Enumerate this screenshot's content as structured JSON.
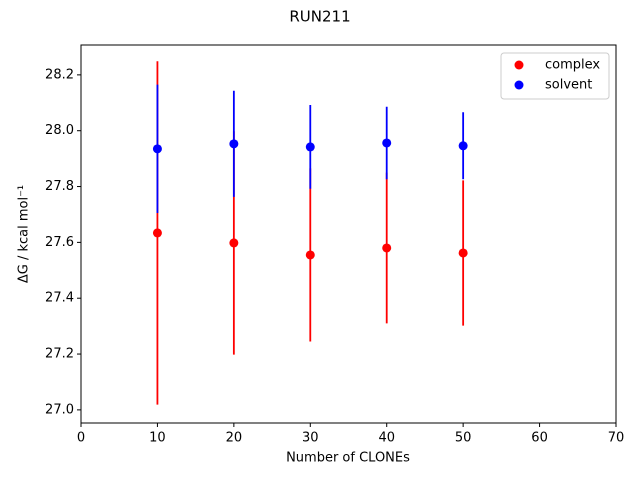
{
  "chart_data": {
    "type": "errorbar_scatter",
    "title": "RUN211",
    "x_label": "Number of CLONEs",
    "y_label": "ΔG / kcal mol⁻¹",
    "x": [
      10,
      20,
      30,
      40,
      50
    ],
    "series": [
      {
        "name": "complex",
        "color": "#ff0000",
        "values": [
          27.634,
          27.598,
          27.555,
          27.58,
          27.562
        ],
        "errors": [
          0.615,
          0.4,
          0.31,
          0.27,
          0.26
        ]
      },
      {
        "name": "solvent",
        "color": "#0000ff",
        "values": [
          27.935,
          27.953,
          27.942,
          27.956,
          27.946
        ],
        "errors": [
          0.23,
          0.19,
          0.15,
          0.13,
          0.12
        ]
      }
    ],
    "xlim": [
      0,
      70
    ],
    "xticks": [
      0,
      10,
      20,
      30,
      40,
      50,
      60,
      70
    ],
    "ylim": [
      26.953,
      28.307
    ],
    "yticks": [
      {
        "value": 27,
        "label": "27.0"
      },
      27.2,
      27.4,
      27.6,
      27.8,
      {
        "value": 28,
        "label": "28.0"
      },
      28.2
    ],
    "legend": "upper right",
    "grid": false
  }
}
